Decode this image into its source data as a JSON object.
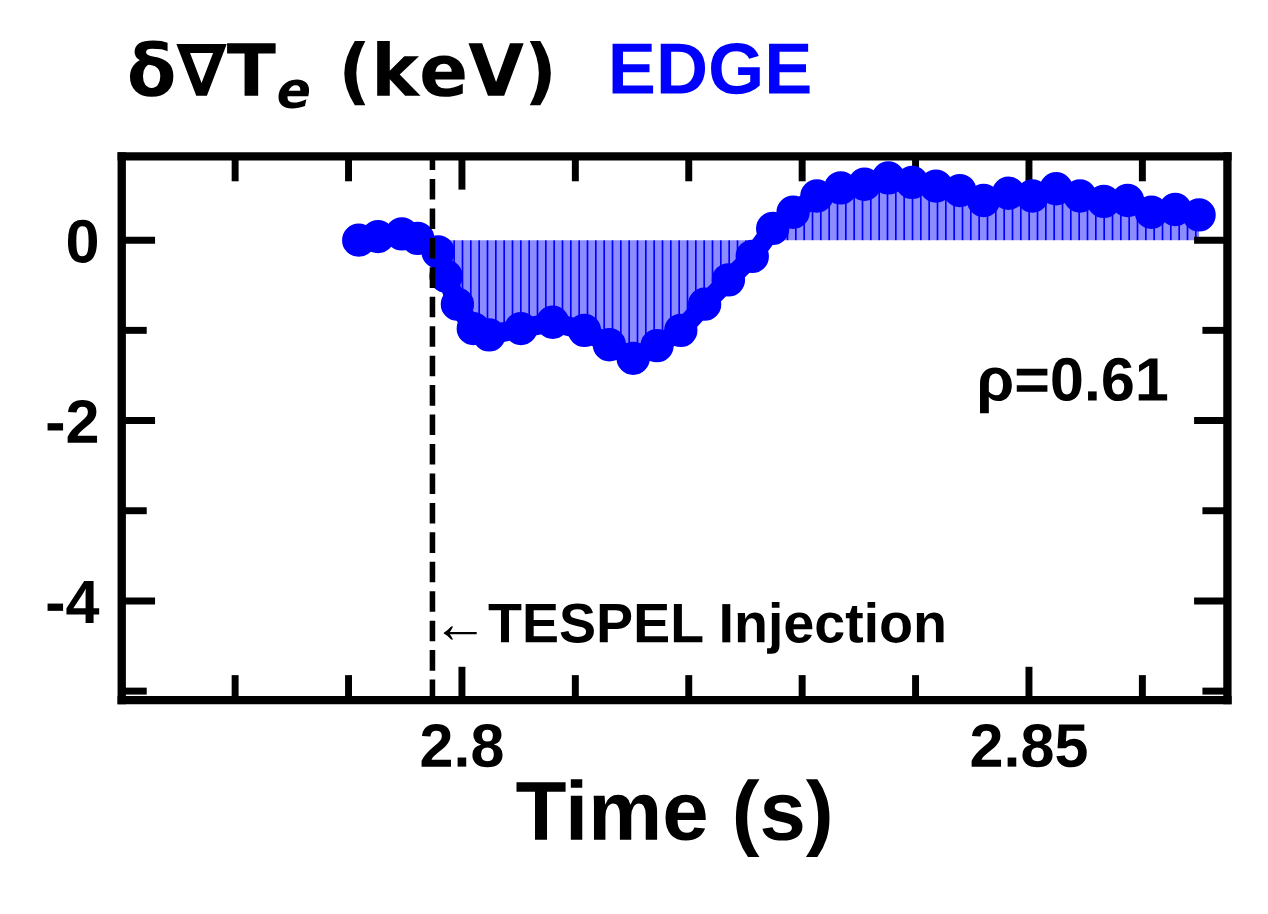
{
  "chart_data": {
    "type": "area",
    "ylabel": "δ∇T$_{e}$ (keV)",
    "xlabel": "Time (s)",
    "xlim": [
      2.77,
      2.8675
    ],
    "ylim": [
      -5.1,
      0.93
    ],
    "xticks": [
      {
        "value": 2.78,
        "label": null
      },
      {
        "value": 2.79,
        "label": null
      },
      {
        "value": 2.8,
        "label": "2.8"
      },
      {
        "value": 2.81,
        "label": null
      },
      {
        "value": 2.82,
        "label": null
      },
      {
        "value": 2.83,
        "label": null
      },
      {
        "value": 2.84,
        "label": null
      },
      {
        "value": 2.85,
        "label": "2.85"
      },
      {
        "value": 2.86,
        "label": null
      }
    ],
    "yticks": [
      {
        "value": -5,
        "label": null
      },
      -4,
      {
        "value": -3,
        "label": null
      },
      -2,
      {
        "value": -1,
        "label": null
      },
      0
    ],
    "grid": false,
    "legend": false,
    "marker": "circle",
    "series": [
      {
        "name": "EDGE",
        "color": "#0000ff",
        "x": [
          2.7909,
          2.7926,
          2.7947,
          2.7961,
          2.7979,
          2.7986,
          2.7996,
          2.801,
          2.8024,
          2.8052,
          2.808,
          2.8108,
          2.813,
          2.8151,
          2.8172,
          2.8193,
          2.8214,
          2.8235,
          2.8256,
          2.8274,
          2.8292,
          2.8313,
          2.8334,
          2.8355,
          2.8376,
          2.8397,
          2.8418,
          2.8439,
          2.846,
          2.8482,
          2.8503,
          2.8524,
          2.8545,
          2.8566,
          2.8587,
          2.8608,
          2.8629,
          2.865
        ],
        "values": [
          0,
          0.04,
          0.07,
          0.02,
          -0.13,
          -0.4,
          -0.71,
          -0.98,
          -1.05,
          -0.98,
          -0.91,
          -1.0,
          -1.16,
          -1.31,
          -1.17,
          -1.0,
          -0.71,
          -0.44,
          -0.18,
          0.13,
          0.31,
          0.49,
          0.58,
          0.62,
          0.69,
          0.64,
          0.6,
          0.55,
          0.44,
          0.52,
          0.49,
          0.57,
          0.49,
          0.43,
          0.44,
          0.31,
          0.34,
          0.28
        ]
      }
    ],
    "ref_lines": [
      {
        "axis": "x",
        "value": 2.7974,
        "line_style": "dashed",
        "color": "#000000"
      }
    ],
    "annotations": [
      {
        "text": "←TESPEL Injection",
        "x": 2.7974,
        "y": -4.3
      },
      "ρ=0.61"
    ]
  }
}
